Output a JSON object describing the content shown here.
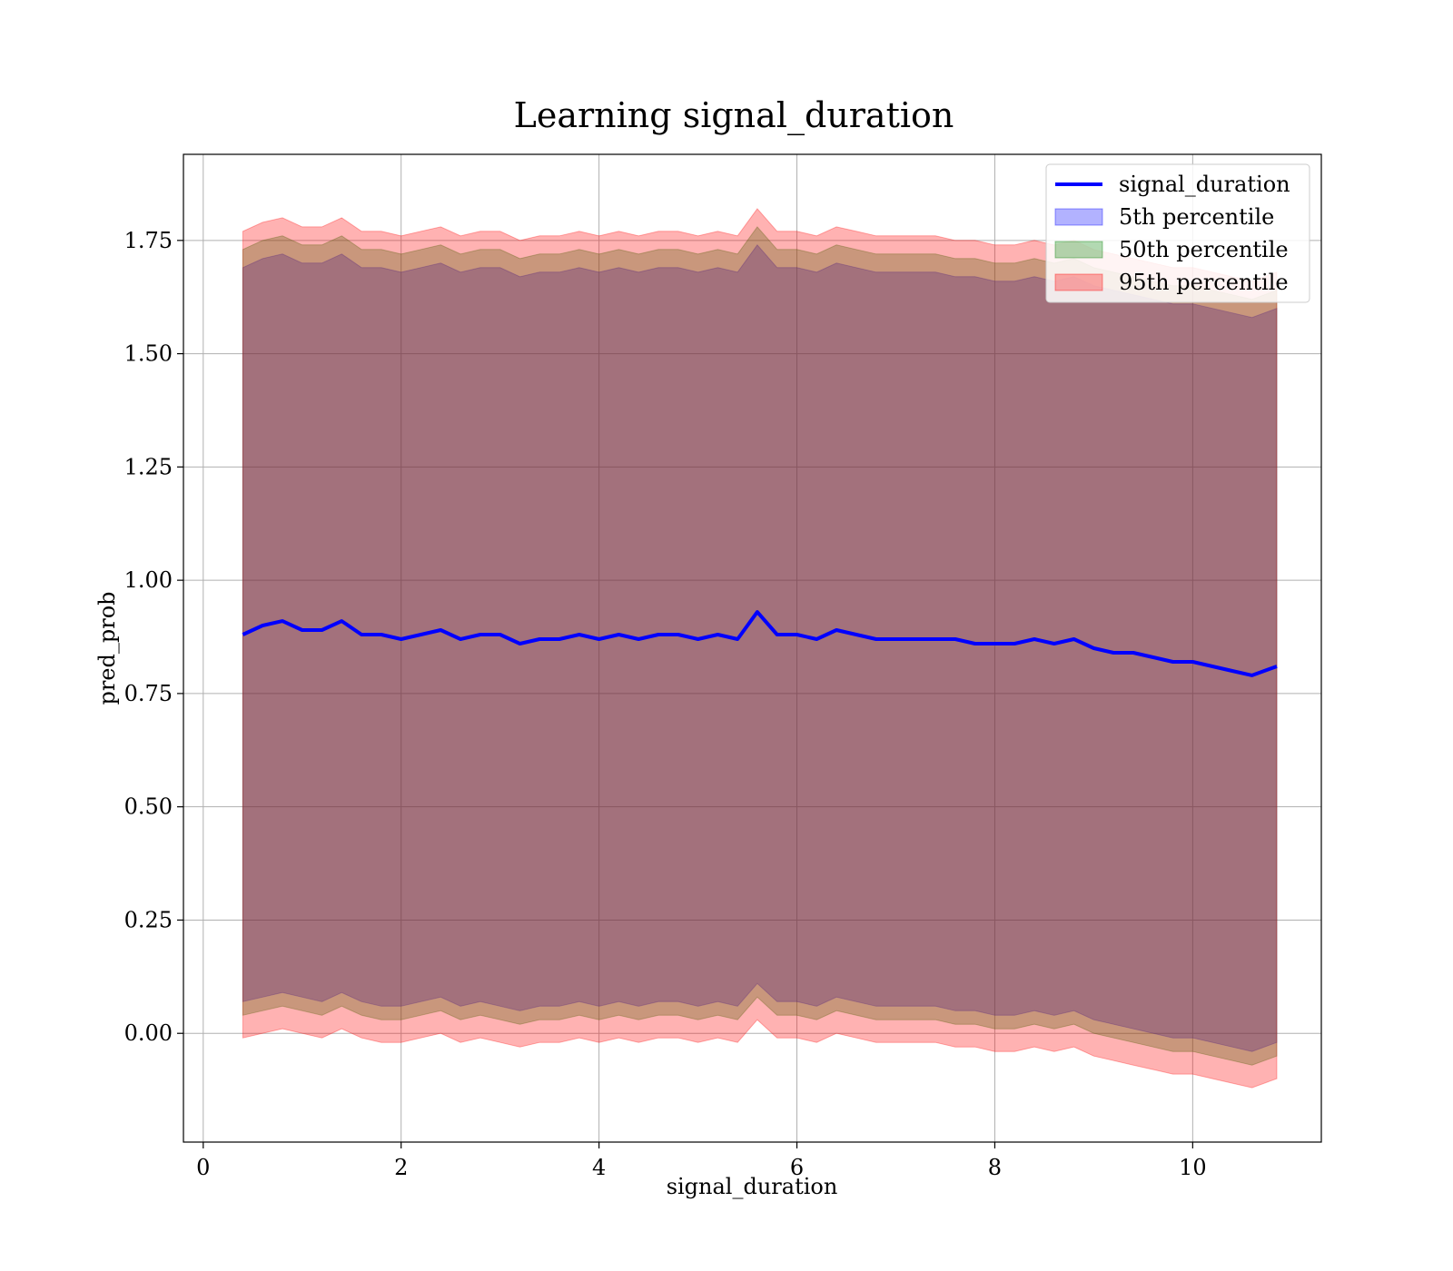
{
  "chart_data": {
    "type": "line",
    "title": "Learning signal_duration",
    "xlabel": "signal_duration",
    "ylabel": "pred_prob",
    "xlim": [
      -0.2,
      11.3
    ],
    "ylim": [
      -0.24,
      1.94
    ],
    "grid": true,
    "legend_position": "top-right",
    "x_ticks": [
      0,
      2,
      4,
      6,
      8,
      10
    ],
    "x_tick_labels": [
      "0",
      "2",
      "4",
      "6",
      "8",
      "10"
    ],
    "y_ticks": [
      0.0,
      0.25,
      0.5,
      0.75,
      1.0,
      1.25,
      1.5,
      1.75
    ],
    "y_tick_labels": [
      "0.00",
      "0.25",
      "0.50",
      "0.75",
      "1.00",
      "1.25",
      "1.50",
      "1.75"
    ],
    "x": [
      0.4,
      0.6,
      0.8,
      1.0,
      1.2,
      1.4,
      1.6,
      1.8,
      2.0,
      2.2,
      2.4,
      2.6,
      2.8,
      3.0,
      3.2,
      3.4,
      3.6,
      3.8,
      4.0,
      4.2,
      4.4,
      4.6,
      4.8,
      5.0,
      5.2,
      5.4,
      5.6,
      5.8,
      6.0,
      6.2,
      6.4,
      6.6,
      6.8,
      7.0,
      7.2,
      7.4,
      7.6,
      7.8,
      8.0,
      8.2,
      8.4,
      8.6,
      8.8,
      9.0,
      9.2,
      9.4,
      9.6,
      9.8,
      10.0,
      10.2,
      10.4,
      10.6,
      10.85
    ],
    "series": [
      {
        "name": "signal_duration",
        "color": "#0000ff",
        "values": [
          0.88,
          0.9,
          0.91,
          0.89,
          0.89,
          0.91,
          0.88,
          0.88,
          0.87,
          0.88,
          0.89,
          0.87,
          0.88,
          0.88,
          0.86,
          0.87,
          0.87,
          0.88,
          0.87,
          0.88,
          0.87,
          0.88,
          0.88,
          0.87,
          0.88,
          0.87,
          0.93,
          0.88,
          0.88,
          0.87,
          0.89,
          0.88,
          0.87,
          0.87,
          0.87,
          0.87,
          0.87,
          0.86,
          0.86,
          0.86,
          0.87,
          0.86,
          0.87,
          0.85,
          0.84,
          0.84,
          0.83,
          0.82,
          0.82,
          0.81,
          0.8,
          0.79,
          0.81
        ]
      }
    ],
    "bands": [
      {
        "name": "5th percentile",
        "color": "#0000ff",
        "lower": [
          0.07,
          0.08,
          0.09,
          0.08,
          0.07,
          0.09,
          0.07,
          0.06,
          0.06,
          0.07,
          0.08,
          0.06,
          0.07,
          0.06,
          0.05,
          0.06,
          0.06,
          0.07,
          0.06,
          0.07,
          0.06,
          0.07,
          0.07,
          0.06,
          0.07,
          0.06,
          0.11,
          0.07,
          0.07,
          0.06,
          0.08,
          0.07,
          0.06,
          0.06,
          0.06,
          0.06,
          0.05,
          0.05,
          0.04,
          0.04,
          0.05,
          0.04,
          0.05,
          0.03,
          0.02,
          0.01,
          0.0,
          -0.01,
          -0.01,
          -0.02,
          -0.03,
          -0.04,
          -0.02
        ],
        "upper": [
          1.69,
          1.71,
          1.72,
          1.7,
          1.7,
          1.72,
          1.69,
          1.69,
          1.68,
          1.69,
          1.7,
          1.68,
          1.69,
          1.69,
          1.67,
          1.68,
          1.68,
          1.69,
          1.68,
          1.69,
          1.68,
          1.69,
          1.69,
          1.68,
          1.69,
          1.68,
          1.74,
          1.69,
          1.69,
          1.68,
          1.7,
          1.69,
          1.68,
          1.68,
          1.68,
          1.68,
          1.67,
          1.67,
          1.66,
          1.66,
          1.67,
          1.66,
          1.67,
          1.65,
          1.64,
          1.63,
          1.62,
          1.61,
          1.61,
          1.6,
          1.59,
          1.58,
          1.6
        ]
      },
      {
        "name": "50th percentile",
        "color": "#008000",
        "lower": [
          0.04,
          0.05,
          0.06,
          0.05,
          0.04,
          0.06,
          0.04,
          0.03,
          0.03,
          0.04,
          0.05,
          0.03,
          0.04,
          0.03,
          0.02,
          0.03,
          0.03,
          0.04,
          0.03,
          0.04,
          0.03,
          0.04,
          0.04,
          0.03,
          0.04,
          0.03,
          0.08,
          0.04,
          0.04,
          0.03,
          0.05,
          0.04,
          0.03,
          0.03,
          0.03,
          0.03,
          0.02,
          0.02,
          0.01,
          0.01,
          0.02,
          0.01,
          0.02,
          0.0,
          -0.01,
          -0.02,
          -0.03,
          -0.04,
          -0.04,
          -0.05,
          -0.06,
          -0.07,
          -0.05
        ],
        "upper": [
          1.73,
          1.75,
          1.76,
          1.74,
          1.74,
          1.76,
          1.73,
          1.73,
          1.72,
          1.73,
          1.74,
          1.72,
          1.73,
          1.73,
          1.71,
          1.72,
          1.72,
          1.73,
          1.72,
          1.73,
          1.72,
          1.73,
          1.73,
          1.72,
          1.73,
          1.72,
          1.78,
          1.73,
          1.73,
          1.72,
          1.74,
          1.73,
          1.72,
          1.72,
          1.72,
          1.72,
          1.71,
          1.71,
          1.7,
          1.7,
          1.71,
          1.7,
          1.71,
          1.69,
          1.68,
          1.67,
          1.66,
          1.65,
          1.65,
          1.64,
          1.63,
          1.62,
          1.64
        ]
      },
      {
        "name": "95th percentile",
        "color": "#ff0000",
        "lower": [
          -0.01,
          0.0,
          0.01,
          0.0,
          -0.01,
          0.01,
          -0.01,
          -0.02,
          -0.02,
          -0.01,
          0.0,
          -0.02,
          -0.01,
          -0.02,
          -0.03,
          -0.02,
          -0.02,
          -0.01,
          -0.02,
          -0.01,
          -0.02,
          -0.01,
          -0.01,
          -0.02,
          -0.01,
          -0.02,
          0.03,
          -0.01,
          -0.01,
          -0.02,
          0.0,
          -0.01,
          -0.02,
          -0.02,
          -0.02,
          -0.02,
          -0.03,
          -0.03,
          -0.04,
          -0.04,
          -0.03,
          -0.04,
          -0.03,
          -0.05,
          -0.06,
          -0.07,
          -0.08,
          -0.09,
          -0.09,
          -0.1,
          -0.11,
          -0.12,
          -0.1
        ],
        "upper": [
          1.77,
          1.79,
          1.8,
          1.78,
          1.78,
          1.8,
          1.77,
          1.77,
          1.76,
          1.77,
          1.78,
          1.76,
          1.77,
          1.77,
          1.75,
          1.76,
          1.76,
          1.77,
          1.76,
          1.77,
          1.76,
          1.77,
          1.77,
          1.76,
          1.77,
          1.76,
          1.82,
          1.77,
          1.77,
          1.76,
          1.78,
          1.77,
          1.76,
          1.76,
          1.76,
          1.76,
          1.75,
          1.75,
          1.74,
          1.74,
          1.75,
          1.74,
          1.75,
          1.73,
          1.72,
          1.71,
          1.7,
          1.69,
          1.69,
          1.68,
          1.67,
          1.66,
          1.68
        ]
      }
    ]
  }
}
